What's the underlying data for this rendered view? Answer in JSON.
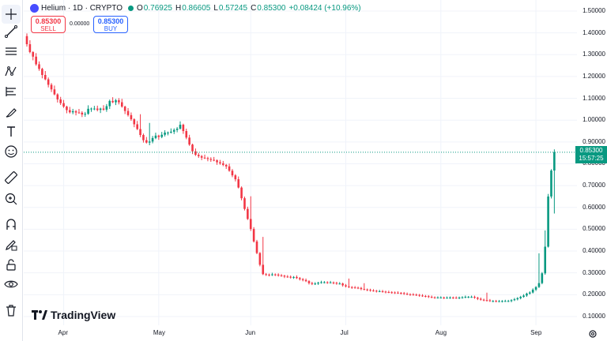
{
  "legend": {
    "symbol": "Helium",
    "interval": "1D",
    "source": "CRYPTO",
    "open_label": "O",
    "open": "0.76925",
    "high_label": "H",
    "high": "0.86605",
    "low_label": "L",
    "low": "0.57245",
    "close_label": "C",
    "close": "0.85300",
    "change": "+0.08424 (+10.96%)"
  },
  "trade": {
    "sell_price": "0.85300",
    "sell_label": "SELL",
    "spread": "0.00000",
    "buy_price": "0.85300",
    "buy_label": "BUY"
  },
  "price_label": {
    "price": "0.85300",
    "countdown": "15:57:25"
  },
  "brand": {
    "name": "TradingView"
  },
  "toolbar": [
    {
      "name": "crosshair-icon"
    },
    {
      "name": "trend-line-icon"
    },
    {
      "name": "horizontal-lines-icon"
    },
    {
      "name": "pattern-icon"
    },
    {
      "name": "fib-tool-icon"
    },
    {
      "name": "brush-icon"
    },
    {
      "name": "text-icon"
    },
    {
      "name": "emoji-icon"
    },
    {
      "name": "ruler-icon"
    },
    {
      "name": "zoom-in-icon"
    },
    {
      "name": "magnet-icon"
    },
    {
      "name": "lock-drawing-icon"
    },
    {
      "name": "unlock-icon"
    },
    {
      "name": "eye-icon"
    },
    {
      "name": "trash-icon"
    }
  ],
  "colors": {
    "up": "#089981",
    "down": "#f23645",
    "text": "#131722",
    "grid": "#f0f3fa"
  },
  "chart_data": {
    "type": "candlestick",
    "y_ticks": [
      "1.50000",
      "1.40000",
      "1.30000",
      "1.20000",
      "1.10000",
      "1.00000",
      "0.90000",
      "0.80000",
      "0.70000",
      "0.60000",
      "0.50000",
      "0.40000",
      "0.30000",
      "0.20000",
      "0.10000"
    ],
    "y_tick_values": [
      1.5,
      1.4,
      1.3,
      1.2,
      1.1,
      1.0,
      0.9,
      0.8,
      0.7,
      0.6,
      0.5,
      0.4,
      0.3,
      0.2,
      0.1
    ],
    "x_ticks": [
      "Apr",
      "May",
      "Jun",
      "Jul",
      "Aug",
      "Sep"
    ],
    "x_tick_index": [
      12,
      43,
      73,
      104,
      135,
      166
    ],
    "last_price": 0.853,
    "close": [
      1.348,
      1.312,
      1.291,
      1.256,
      1.235,
      1.207,
      1.187,
      1.162,
      1.141,
      1.118,
      1.095,
      1.078,
      1.062,
      1.046,
      1.036,
      1.041,
      1.035,
      1.034,
      1.026,
      1.029,
      1.052,
      1.053,
      1.053,
      1.047,
      1.053,
      1.048,
      1.064,
      1.088,
      1.082,
      1.091,
      1.082,
      1.062,
      1.042,
      1.023,
      1.004,
      0.981,
      0.959,
      0.932,
      0.908,
      0.897,
      0.902,
      0.918,
      0.929,
      0.923,
      0.933,
      0.943,
      0.943,
      0.947,
      0.955,
      0.961,
      0.979,
      0.95,
      0.92,
      0.888,
      0.857,
      0.841,
      0.835,
      0.828,
      0.826,
      0.822,
      0.818,
      0.816,
      0.807,
      0.802,
      0.795,
      0.788,
      0.768,
      0.747,
      0.729,
      0.691,
      0.642,
      0.593,
      0.547,
      0.501,
      0.444,
      0.391,
      0.337,
      0.294,
      0.292,
      0.29,
      0.293,
      0.292,
      0.288,
      0.287,
      0.283,
      0.282,
      0.279,
      0.281,
      0.276,
      0.271,
      0.267,
      0.262,
      0.253,
      0.249,
      0.251,
      0.255,
      0.257,
      0.257,
      0.256,
      0.256,
      0.254,
      0.251,
      0.251,
      0.243,
      0.238,
      0.235,
      0.233,
      0.232,
      0.231,
      0.226,
      0.224,
      0.222,
      0.219,
      0.218,
      0.216,
      0.216,
      0.214,
      0.212,
      0.211,
      0.21,
      0.209,
      0.208,
      0.207,
      0.204,
      0.202,
      0.201,
      0.2,
      0.199,
      0.196,
      0.194,
      0.193,
      0.19,
      0.188,
      0.187,
      0.187,
      0.187,
      0.186,
      0.186,
      0.187,
      0.186,
      0.185,
      0.187,
      0.188,
      0.19,
      0.19,
      0.19,
      0.186,
      0.181,
      0.177,
      0.175,
      0.174,
      0.171,
      0.171,
      0.17,
      0.17,
      0.171,
      0.171,
      0.171,
      0.175,
      0.179,
      0.184,
      0.19,
      0.196,
      0.205,
      0.21,
      0.223,
      0.235,
      0.253,
      0.298,
      0.42,
      0.65,
      0.769,
      0.853
    ]
  }
}
